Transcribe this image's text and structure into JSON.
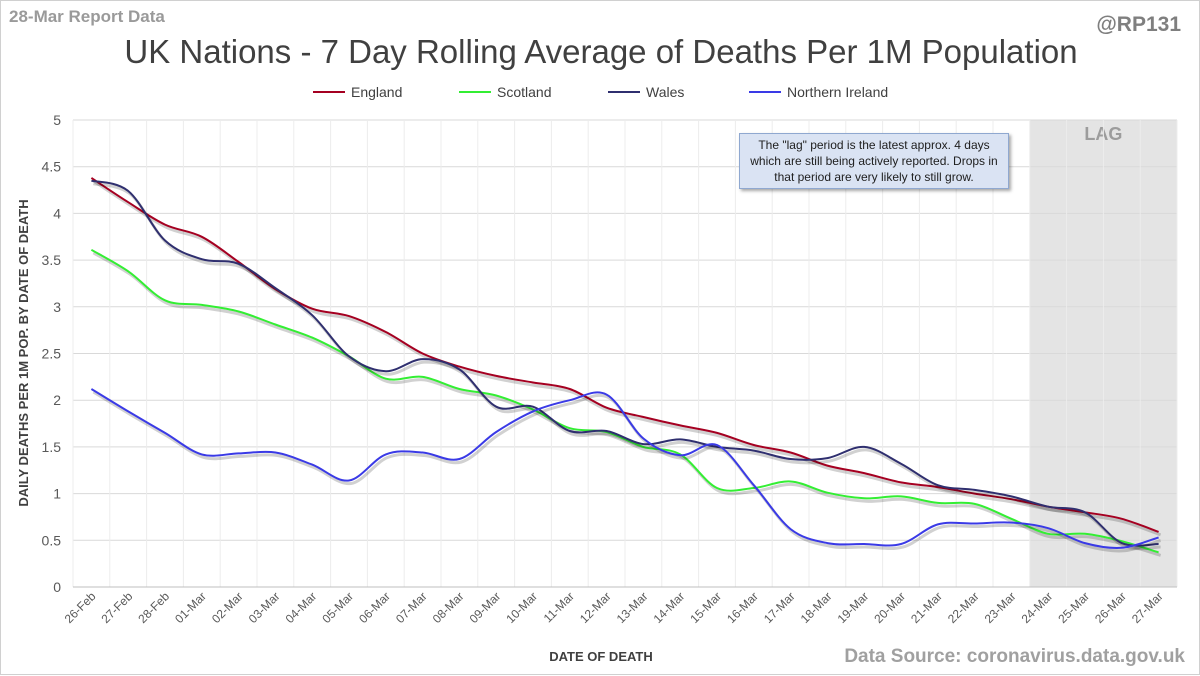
{
  "header": {
    "report_label": "28-Mar Report Data",
    "handle": "@RP131",
    "source": "Data Source: coronavirus.data.gov.uk"
  },
  "annotation": {
    "text": "The \"lag\" period is the latest approx. 4 days which are still being actively reported. Drops in that period are very likely to still grow.",
    "lag_label": "LAG"
  },
  "chart_data": {
    "type": "line",
    "title": "UK Nations - 7 Day Rolling Average of Deaths Per 1M Population",
    "xlabel": "DATE OF DEATH",
    "ylabel": "DAILY DEATHS PER 1M POP. BY DATE OF DEATH",
    "ylim": [
      0,
      5
    ],
    "yticks": [
      0,
      0.5,
      1,
      1.5,
      2,
      2.5,
      3,
      3.5,
      4,
      4.5,
      5
    ],
    "ytick_labels": [
      "0",
      "0.5",
      "1",
      "1.5",
      "2",
      "2.5",
      "3",
      "3.5",
      "4",
      "4.5",
      "5"
    ],
    "grid": true,
    "legend": "top",
    "lag_region": [
      "24-Mar",
      "27-Mar"
    ],
    "categories": [
      "26-Feb",
      "27-Feb",
      "28-Feb",
      "01-Mar",
      "02-Mar",
      "03-Mar",
      "04-Mar",
      "05-Mar",
      "06-Mar",
      "07-Mar",
      "08-Mar",
      "09-Mar",
      "10-Mar",
      "11-Mar",
      "12-Mar",
      "13-Mar",
      "14-Mar",
      "15-Mar",
      "16-Mar",
      "17-Mar",
      "18-Mar",
      "19-Mar",
      "20-Mar",
      "21-Mar",
      "22-Mar",
      "23-Mar",
      "24-Mar",
      "25-Mar",
      "26-Mar",
      "27-Mar"
    ],
    "series": [
      {
        "name": "England",
        "color": "#a50021",
        "values": [
          4.38,
          4.12,
          3.88,
          3.75,
          3.48,
          3.19,
          2.98,
          2.9,
          2.73,
          2.5,
          2.36,
          2.26,
          2.19,
          2.12,
          1.92,
          1.82,
          1.73,
          1.65,
          1.52,
          1.44,
          1.3,
          1.22,
          1.12,
          1.07,
          1.0,
          0.94,
          0.86,
          0.8,
          0.73,
          0.59
        ]
      },
      {
        "name": "Scotland",
        "color": "#33ee33",
        "values": [
          3.61,
          3.38,
          3.07,
          3.02,
          2.95,
          2.81,
          2.67,
          2.47,
          2.23,
          2.25,
          2.12,
          2.05,
          1.9,
          1.7,
          1.66,
          1.5,
          1.42,
          1.06,
          1.06,
          1.13,
          1.01,
          0.95,
          0.97,
          0.9,
          0.89,
          0.73,
          0.57,
          0.57,
          0.49,
          0.37
        ]
      },
      {
        "name": "Wales",
        "color": "#2f2f6f",
        "values": [
          4.35,
          4.24,
          3.71,
          3.51,
          3.46,
          3.2,
          2.91,
          2.47,
          2.31,
          2.44,
          2.33,
          1.93,
          1.93,
          1.67,
          1.67,
          1.53,
          1.58,
          1.5,
          1.46,
          1.37,
          1.38,
          1.5,
          1.32,
          1.09,
          1.04,
          0.97,
          0.86,
          0.8,
          0.47,
          0.46
        ]
      },
      {
        "name": "Northern Ireland",
        "color": "#3a3ae6",
        "values": [
          2.12,
          1.88,
          1.65,
          1.42,
          1.43,
          1.44,
          1.31,
          1.14,
          1.42,
          1.44,
          1.37,
          1.66,
          1.88,
          2.0,
          2.06,
          1.59,
          1.41,
          1.52,
          1.09,
          0.62,
          0.47,
          0.46,
          0.46,
          0.67,
          0.68,
          0.69,
          0.63,
          0.47,
          0.42,
          0.53
        ]
      }
    ]
  }
}
